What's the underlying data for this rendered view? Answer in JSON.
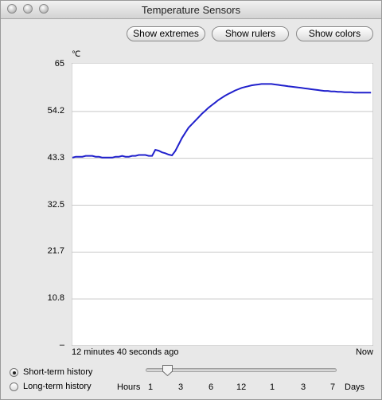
{
  "window": {
    "title": "Temperature Sensors"
  },
  "buttons": {
    "extremes": "Show extremes",
    "rulers": "Show rulers",
    "colors": "Show colors"
  },
  "chart_data": {
    "type": "line",
    "unit_label": "℃",
    "y_ticks": [
      "65",
      "54.2",
      "43.3",
      "32.5",
      "21.7",
      "10.8",
      "–"
    ],
    "ylim": [
      0,
      65
    ],
    "x_start_label": "12 minutes 40 seconds ago",
    "x_end_label": "Now",
    "grid": true,
    "line_color": "#2020cc",
    "series": [
      {
        "values": [
          43.5,
          43.7,
          43.7,
          43.7,
          43.9,
          43.9,
          43.9,
          43.7,
          43.7,
          43.5,
          43.5,
          43.5,
          43.5,
          43.7,
          43.7,
          43.9,
          43.7,
          43.7,
          43.9,
          43.9,
          44.1,
          44.1,
          44.1,
          43.9,
          43.9,
          45.3,
          45.1,
          44.7,
          44.5,
          44.2,
          44.0,
          45.0,
          46.5,
          48.0,
          49.2,
          50.4,
          51.2,
          52.0,
          52.8,
          53.6,
          54.3,
          55.0,
          55.6,
          56.2,
          56.8,
          57.3,
          57.8,
          58.2,
          58.6,
          59.0,
          59.3,
          59.6,
          59.8,
          60.0,
          60.2,
          60.3,
          60.4,
          60.5,
          60.5,
          60.5,
          60.5,
          60.4,
          60.3,
          60.2,
          60.1,
          60.0,
          59.9,
          59.8,
          59.7,
          59.6,
          59.5,
          59.4,
          59.3,
          59.2,
          59.1,
          59.0,
          58.9,
          58.9,
          58.8,
          58.8,
          58.7,
          58.7,
          58.6,
          58.6,
          58.6,
          58.5,
          58.5,
          58.5,
          58.5,
          58.5,
          58.5
        ]
      }
    ]
  },
  "history": {
    "short_term": "Short-term history",
    "long_term": "Long-term history",
    "selected": "short_term"
  },
  "scale": {
    "hours_label": "Hours",
    "hours_ticks": [
      "1",
      "3",
      "6",
      "12"
    ],
    "days_ticks": [
      "1",
      "3",
      "7"
    ],
    "days_label": "Days",
    "slider_value": "3 Hours"
  }
}
